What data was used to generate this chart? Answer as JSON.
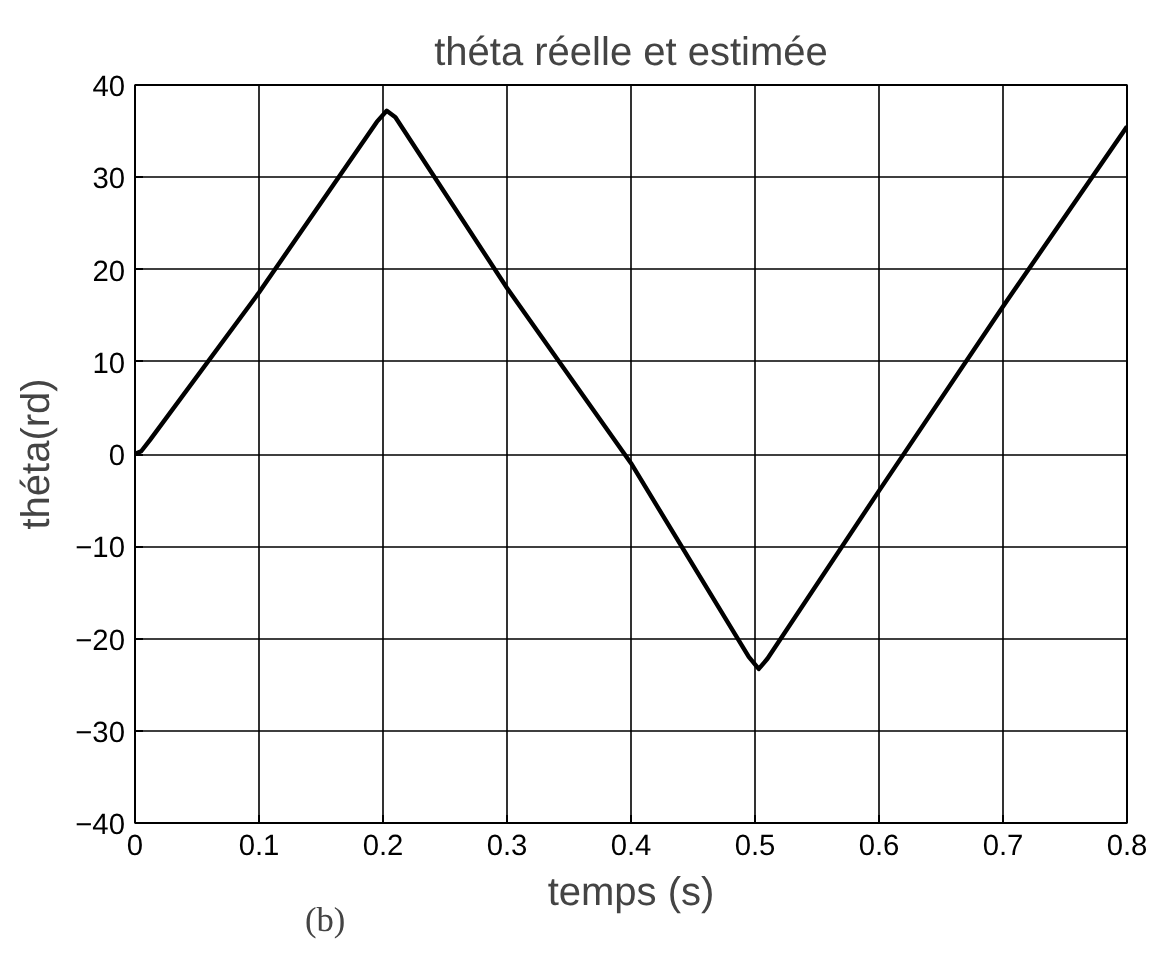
{
  "chart_data": {
    "type": "line",
    "title": "théta réelle et estimée",
    "xlabel": "temps (s)",
    "ylabel": "théta(rd)",
    "annotations": [
      "(b)"
    ],
    "x": [
      0,
      0.005,
      0.012,
      0.1,
      0.195,
      0.203,
      0.21,
      0.3,
      0.4,
      0.495,
      0.503,
      0.51,
      0.6,
      0.7,
      0.8
    ],
    "series": [
      {
        "color": "#000000",
        "values": [
          0,
          0.3,
          1.5,
          17.5,
          36,
          37.2,
          36.5,
          18,
          -1,
          -22,
          -23.3,
          -22.2,
          -4,
          16,
          35.5
        ]
      }
    ],
    "xlim": [
      0,
      0.8
    ],
    "ylim": [
      -40,
      40
    ],
    "xticks": [
      0,
      0.1,
      0.2,
      0.3,
      0.4,
      0.5,
      0.6,
      0.7,
      0.8
    ],
    "yticks": [
      -40,
      -30,
      -20,
      -10,
      0,
      10,
      20,
      30,
      40
    ],
    "grid": true,
    "marker": "none",
    "line_style": "solid"
  }
}
